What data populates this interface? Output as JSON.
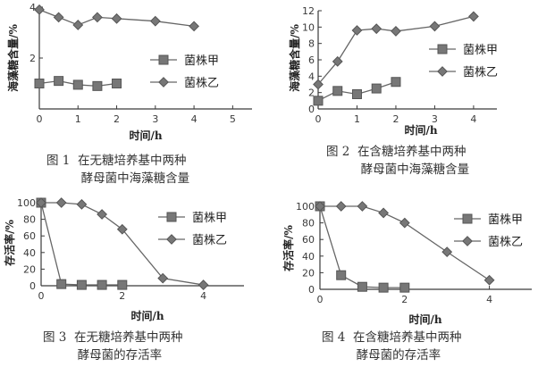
{
  "charts": [
    {
      "type": "line",
      "xlabel": "时间/h",
      "ylabel": "海藻糖含量/%",
      "xlim": [
        0,
        5.5
      ],
      "ylim": [
        0,
        4
      ],
      "xticks": [
        0,
        1,
        2,
        3,
        4,
        5
      ],
      "yticks": [
        2,
        4
      ],
      "legend": "right",
      "series": [
        {
          "name": "菌株甲",
          "marker": "square",
          "x": [
            0,
            0.5,
            1,
            1.5,
            2
          ],
          "y": [
            1.0,
            1.1,
            0.95,
            0.9,
            1.0
          ]
        },
        {
          "name": "菌株乙",
          "marker": "diamond",
          "x": [
            0,
            0.5,
            1,
            1.5,
            2,
            3,
            4
          ],
          "y": [
            3.9,
            3.6,
            3.3,
            3.6,
            3.55,
            3.45,
            3.25
          ]
        }
      ],
      "caption_number": "图 1",
      "caption_line1": "在无糖培养基中两种",
      "caption_line2": "酵母菌中海藻糖含量"
    },
    {
      "type": "line",
      "xlabel": "时间/h",
      "ylabel": "海藻糖含量/%",
      "xlim": [
        0,
        4.6
      ],
      "ylim": [
        0,
        12
      ],
      "xticks": [
        0,
        1,
        2,
        3,
        4
      ],
      "yticks": [
        0,
        2,
        4,
        6,
        8,
        10,
        12
      ],
      "legend": "right",
      "series": [
        {
          "name": "菌株甲",
          "marker": "square",
          "x": [
            0,
            0.5,
            1,
            1.5,
            2
          ],
          "y": [
            1.0,
            2.2,
            1.8,
            2.5,
            3.3
          ]
        },
        {
          "name": "菌株乙",
          "marker": "diamond",
          "x": [
            0,
            0.5,
            1,
            1.5,
            2,
            3,
            4
          ],
          "y": [
            3.0,
            5.8,
            9.6,
            9.8,
            9.5,
            10.1,
            11.3
          ]
        }
      ],
      "caption_number": "图 2",
      "caption_line1": "在含糖培养基中两种",
      "caption_line2": "酵母菌中海藻糖含量"
    },
    {
      "type": "line",
      "xlabel": "时间/h",
      "ylabel": "存活率/%",
      "xlim": [
        0,
        5
      ],
      "ylim": [
        0,
        100
      ],
      "xticks": [
        0,
        2,
        4
      ],
      "yticks": [
        0,
        20,
        40,
        60,
        80,
        100
      ],
      "legend": "right",
      "series": [
        {
          "name": "菌株甲",
          "marker": "square",
          "x": [
            0,
            0.5,
            1,
            1.5,
            2
          ],
          "y": [
            100,
            2,
            1,
            1,
            1
          ]
        },
        {
          "name": "菌株乙",
          "marker": "diamond",
          "x": [
            0,
            0.5,
            1,
            1.5,
            2,
            3,
            4
          ],
          "y": [
            100,
            100,
            98,
            86,
            68,
            9,
            1
          ]
        }
      ],
      "caption_number": "图 3",
      "caption_line1": "在无糖培养基中两种",
      "caption_line2": "酵母菌的存活率"
    },
    {
      "type": "line",
      "xlabel": "时间/h",
      "ylabel": "存活率/%",
      "xlim": [
        0,
        5
      ],
      "ylim": [
        0,
        100
      ],
      "xticks": [
        0,
        2,
        4
      ],
      "yticks": [
        0,
        20,
        40,
        60,
        80,
        100
      ],
      "legend": "right",
      "series": [
        {
          "name": "菌株甲",
          "marker": "square",
          "x": [
            0,
            0.5,
            1,
            1.5,
            2
          ],
          "y": [
            100,
            17,
            3,
            2,
            2
          ]
        },
        {
          "name": "菌株乙",
          "marker": "diamond",
          "x": [
            0,
            0.5,
            1,
            1.5,
            2,
            3,
            4
          ],
          "y": [
            100,
            100,
            100,
            92,
            80,
            45,
            11
          ]
        }
      ],
      "caption_number": "图 4",
      "caption_line1": "在含糖培养基中两种",
      "caption_line2": "酵母菌的存活率"
    }
  ]
}
